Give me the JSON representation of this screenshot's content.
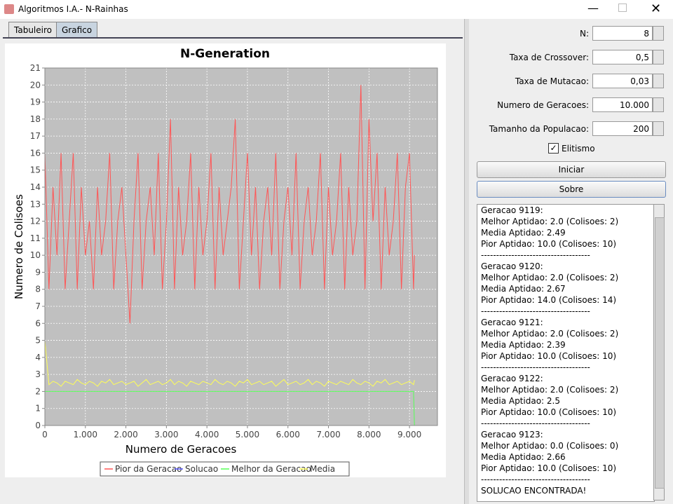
{
  "window": {
    "title": "Algoritmos I.A.- N-Rainhas"
  },
  "tabs": [
    "Tabuleiro",
    "Grafico"
  ],
  "form": {
    "fields": [
      {
        "label": "N:",
        "value": "8"
      },
      {
        "label": "Taxa de Crossover:",
        "value": "0,5"
      },
      {
        "label": "Taxa de Mutacao:",
        "value": "0,03"
      },
      {
        "label": "Numero de Geracoes:",
        "value": "10.000"
      },
      {
        "label": "Tamanho da Populacao:",
        "value": "200"
      }
    ],
    "checkbox": "Elitismo",
    "buttons": [
      "Iniciar",
      "Sobre"
    ]
  },
  "log": {
    "lines": [
      "Geracao 9119:",
      "Melhor Aptidao: 2.0 (Colisoes: 2)",
      "Media Aptidao: 2.49",
      "Pior Aptidao: 10.0 (Colisoes: 10)",
      "------------------------------------",
      "Geracao 9120:",
      "Melhor Aptidao: 2.0 (Colisoes: 2)",
      "Media Aptidao: 2.67",
      "Pior Aptidao: 14.0 (Colisoes: 14)",
      "------------------------------------",
      "Geracao 9121:",
      "Melhor Aptidao: 2.0 (Colisoes: 2)",
      "Media Aptidao: 2.39",
      "Pior Aptidao: 10.0 (Colisoes: 10)",
      "------------------------------------",
      "Geracao 9122:",
      "Melhor Aptidao: 2.0 (Colisoes: 2)",
      "Media Aptidao: 2.5",
      "Pior Aptidao: 10.0 (Colisoes: 10)",
      "------------------------------------",
      "Geracao 9123:",
      "Melhor Aptidao: 0.0 (Colisoes: 0)",
      "Media Aptidao: 2.66",
      "Pior Aptidao: 10.0 (Colisoes: 10)",
      "------------------------------------",
      "SOLUCAO ENCONTRADA!"
    ]
  },
  "chart_data": {
    "type": "line",
    "title": "N-Generation",
    "x_label": "Numero de Geracoes",
    "y_label": "Numero de Colisoes",
    "x": [
      0,
      100,
      200,
      300,
      400,
      500,
      600,
      700,
      800,
      900,
      1000,
      1100,
      1200,
      1300,
      1400,
      1500,
      1600,
      1700,
      1800,
      1900,
      2000,
      2100,
      2200,
      2300,
      2400,
      2500,
      2600,
      2700,
      2800,
      2900,
      3000,
      3100,
      3200,
      3300,
      3400,
      3500,
      3600,
      3700,
      3800,
      3900,
      4000,
      4100,
      4200,
      4300,
      4400,
      4500,
      4600,
      4700,
      4800,
      4900,
      5000,
      5100,
      5200,
      5300,
      5400,
      5500,
      5600,
      5700,
      5800,
      5900,
      6000,
      6100,
      6200,
      6300,
      6400,
      6500,
      6600,
      6700,
      6800,
      6900,
      7000,
      7100,
      7200,
      7300,
      7400,
      7500,
      7600,
      7700,
      7800,
      7900,
      8000,
      8100,
      8200,
      8300,
      8400,
      8500,
      8600,
      8700,
      8800,
      8900,
      9000,
      9100,
      9123
    ],
    "series": [
      {
        "name": "Pior da Geracao",
        "color": "#ff5555",
        "values": [
          16,
          8,
          14,
          10,
          16,
          8,
          12,
          16,
          8,
          14,
          10,
          12,
          8,
          14,
          10,
          12,
          16,
          8,
          12,
          14,
          10,
          6,
          12,
          16,
          8,
          12,
          14,
          10,
          16,
          8,
          12,
          18,
          8,
          14,
          10,
          12,
          16,
          8,
          14,
          10,
          12,
          16,
          8,
          14,
          10,
          12,
          14,
          18,
          8,
          12,
          16,
          10,
          14,
          8,
          12,
          14,
          10,
          16,
          8,
          12,
          14,
          10,
          16,
          8,
          12,
          14,
          10,
          12,
          16,
          8,
          14,
          10,
          12,
          16,
          8,
          14,
          10,
          12,
          20,
          8,
          18,
          12,
          16,
          8,
          14,
          10,
          12,
          16,
          8,
          14,
          16,
          8,
          10
        ]
      },
      {
        "name": "Solucao",
        "color": "#5555ff",
        "values": [
          null,
          null,
          null,
          null,
          null,
          null,
          null,
          null,
          null,
          null,
          null,
          null,
          null,
          null,
          null,
          null,
          null,
          null,
          null,
          null,
          null,
          null,
          null,
          null,
          null,
          null,
          null,
          null,
          null,
          null,
          null,
          null,
          null,
          null,
          null,
          null,
          null,
          null,
          null,
          null,
          null,
          null,
          null,
          null,
          null,
          null,
          null,
          null,
          null,
          null,
          null,
          null,
          null,
          null,
          null,
          null,
          null,
          null,
          null,
          null,
          null,
          null,
          null,
          null,
          null,
          null,
          null,
          null,
          null,
          null,
          null,
          null,
          null,
          null,
          null,
          null,
          null,
          null,
          null,
          null,
          null,
          null,
          null,
          null,
          null,
          null,
          null,
          null,
          null,
          null,
          null,
          null,
          null
        ]
      },
      {
        "name": "Melhor da Geracao",
        "color": "#55ff55",
        "values": [
          2,
          2,
          2,
          2,
          2,
          2,
          2,
          2,
          2,
          2,
          2,
          2,
          2,
          2,
          2,
          2,
          2,
          2,
          2,
          2,
          2,
          2,
          2,
          2,
          2,
          2,
          2,
          2,
          2,
          2,
          2,
          2,
          2,
          2,
          2,
          2,
          2,
          2,
          2,
          2,
          2,
          2,
          2,
          2,
          2,
          2,
          2,
          2,
          2,
          2,
          2,
          2,
          2,
          2,
          2,
          2,
          2,
          2,
          2,
          2,
          2,
          2,
          2,
          2,
          2,
          2,
          2,
          2,
          2,
          2,
          2,
          2,
          2,
          2,
          2,
          2,
          2,
          2,
          2,
          2,
          2,
          2,
          2,
          2,
          2,
          2,
          2,
          2,
          2,
          2,
          2,
          2,
          0
        ]
      },
      {
        "name": "Media",
        "color": "#ffff55",
        "values": [
          5,
          2.4,
          2.6,
          2.5,
          2.3,
          2.6,
          2.5,
          2.4,
          2.7,
          2.5,
          2.4,
          2.6,
          2.5,
          2.3,
          2.6,
          2.5,
          2.7,
          2.4,
          2.5,
          2.6,
          2.4,
          2.5,
          2.6,
          2.3,
          2.5,
          2.7,
          2.4,
          2.5,
          2.6,
          2.4,
          2.5,
          2.7,
          2.4,
          2.6,
          2.5,
          2.3,
          2.6,
          2.5,
          2.4,
          2.6,
          2.5,
          2.4,
          2.7,
          2.5,
          2.4,
          2.6,
          2.5,
          2.3,
          2.6,
          2.5,
          2.7,
          2.4,
          2.5,
          2.6,
          2.4,
          2.5,
          2.6,
          2.3,
          2.5,
          2.7,
          2.4,
          2.5,
          2.6,
          2.4,
          2.5,
          2.7,
          2.4,
          2.6,
          2.5,
          2.3,
          2.6,
          2.5,
          2.4,
          2.6,
          2.5,
          2.4,
          2.7,
          2.5,
          2.4,
          2.6,
          2.5,
          2.3,
          2.6,
          2.5,
          2.7,
          2.4,
          2.5,
          2.6,
          2.4,
          2.5,
          2.6,
          2.4,
          2.66
        ]
      }
    ],
    "xlim": [
      0,
      9690
    ],
    "ylim": [
      0,
      21
    ],
    "xticks": [
      0,
      {
        "value": 1000,
        "label": "1.000"
      },
      {
        "value": 2000,
        "label": "2.000"
      },
      {
        "value": 3000,
        "label": "3.000"
      },
      {
        "value": 4000,
        "label": "4.000"
      },
      {
        "value": 5000,
        "label": "5.000"
      },
      {
        "value": 6000,
        "label": "6.000"
      },
      {
        "value": 7000,
        "label": "7.000"
      },
      {
        "value": 8000,
        "label": "8.000"
      },
      {
        "value": 9000,
        "label": "9.000"
      }
    ],
    "yticks": [
      0,
      1,
      2,
      3,
      4,
      5,
      6,
      7,
      8,
      9,
      10,
      11,
      12,
      13,
      14,
      15,
      16,
      17,
      18,
      19,
      20,
      21
    ],
    "grid": true
  }
}
